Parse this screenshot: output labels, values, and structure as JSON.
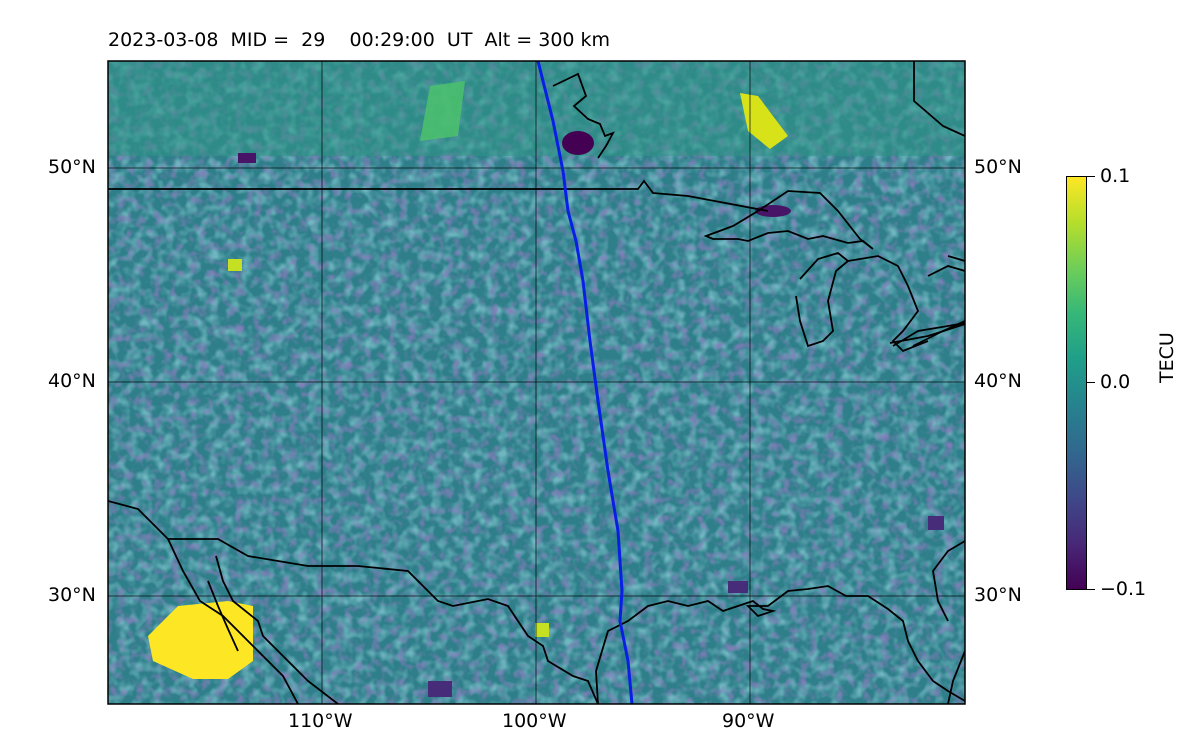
{
  "title": "2023-03-08  MID =  29    00:29:00  UT  Alt = 300 km",
  "map": {
    "lat_labels": [
      "50°N",
      "40°N",
      "30°N"
    ],
    "lon_labels": [
      "110°W",
      "100°W",
      "90°W"
    ],
    "track_color": "#0a1fe6",
    "coast_color": "#000000"
  },
  "colorbar": {
    "label": "TECU",
    "tick_labels": [
      "0.1",
      "0.0",
      "−0.1"
    ],
    "colormap": "viridis",
    "min": -0.1,
    "max": 0.1
  }
}
